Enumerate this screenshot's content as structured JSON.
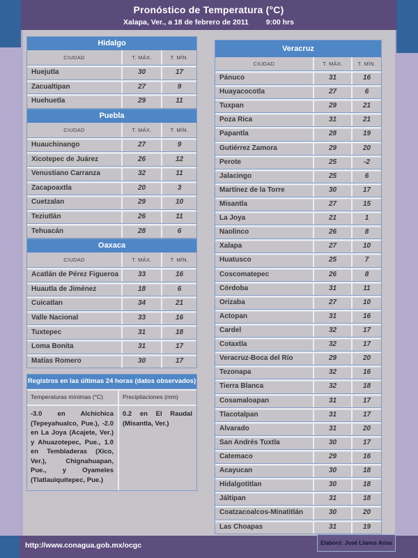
{
  "header": {
    "title": "Pronóstico de Temperatura (°C)",
    "date_line": "Xalapa, Ver., a 18  de febrero de 2011",
    "time": "9:00 hrs"
  },
  "columns": {
    "city": "CIUDAD",
    "tmax": "T. MÁX.",
    "tmin": "T. MÍN."
  },
  "left_tables": [
    {
      "name": "Hidalgo",
      "rows": [
        [
          "Huejutla",
          "30",
          "17"
        ],
        [
          "Zacualtipan",
          "27",
          "9"
        ],
        [
          "Huehuetla",
          "29",
          "11"
        ]
      ]
    },
    {
      "name": "Puebla",
      "rows": [
        [
          "Huauchinango",
          "27",
          "9"
        ],
        [
          "Xicotepec de Juárez",
          "26",
          "12"
        ],
        [
          "Venustiano Carranza",
          "32",
          "11"
        ],
        [
          "Zacapoaxtla",
          "20",
          "3"
        ],
        [
          "Cuetzalan",
          "29",
          "10"
        ],
        [
          "Teziutlán",
          "26",
          "11"
        ],
        [
          "Tehuacán",
          "28",
          "6"
        ]
      ]
    },
    {
      "name": "Oaxaca",
      "rows": [
        [
          "Acatlán de Pérez Figueroa",
          "33",
          "16"
        ],
        [
          "Huautla de Jiménez",
          "18",
          "6"
        ],
        [
          "Cuicatlan",
          "34",
          "21"
        ],
        [
          "Valle Nacional",
          "33",
          "16"
        ],
        [
          "Tuxtepec",
          "31",
          "18"
        ],
        [
          "Loma Bonita",
          "31",
          "17"
        ],
        [
          "Matías Romero",
          "30",
          "17"
        ]
      ]
    }
  ],
  "right_tables": [
    {
      "name": "Veracruz",
      "rows": [
        [
          "Pánuco",
          "31",
          "16"
        ],
        [
          "Huayacocotla",
          "27",
          "6"
        ],
        [
          "Tuxpan",
          "29",
          "21"
        ],
        [
          "Poza Rica",
          "31",
          "21"
        ],
        [
          "Papantla",
          "28",
          "19"
        ],
        [
          "Gutiérrez Zamora",
          "29",
          "20"
        ],
        [
          "Perote",
          "25",
          "-2"
        ],
        [
          "Jalacingo",
          "25",
          "6"
        ],
        [
          "Martínez de la Torre",
          "30",
          "17"
        ],
        [
          "Misantla",
          "27",
          "15"
        ],
        [
          "La Joya",
          "21",
          "1"
        ],
        [
          "Naolinco",
          "26",
          "8"
        ],
        [
          "Xalapa",
          "27",
          "10"
        ],
        [
          "Huatusco",
          "25",
          "7"
        ],
        [
          "Coscomatepec",
          "26",
          "8"
        ],
        [
          "Córdoba",
          "31",
          "11"
        ],
        [
          "Orizaba",
          "27",
          "10"
        ],
        [
          "Actopan",
          "31",
          "16"
        ],
        [
          "Cardel",
          "32",
          "17"
        ],
        [
          "Cotaxtla",
          "32",
          "17"
        ],
        [
          "Veracruz-Boca del Río",
          "29",
          "20"
        ],
        [
          "Tezonapa",
          "32",
          "16"
        ],
        [
          "Tierra Blanca",
          "32",
          "18"
        ],
        [
          "Cosamaloapan",
          "31",
          "17"
        ],
        [
          "Tlacotalpan",
          "31",
          "17"
        ],
        [
          "Alvarado",
          "31",
          "20"
        ],
        [
          "San Andrés Tuxtla",
          "30",
          "17"
        ],
        [
          "Catemaco",
          "29",
          "16"
        ],
        [
          "Acayucan",
          "30",
          "18"
        ],
        [
          "Hidalgotitlan",
          "30",
          "18"
        ],
        [
          "Jáltipan",
          "31",
          "18"
        ],
        [
          "Coatzacoalcos-Minatitlán",
          "30",
          "20"
        ],
        [
          "Las Choapas",
          "31",
          "19"
        ]
      ]
    }
  ],
  "registros": {
    "title": "Registros en las últimas 24 horas (datos observados)",
    "col1_header": "Temperaturas mínimas (°C)",
    "col2_header": "Precipitaciones (mm)",
    "col1_text": "-3.0 en Alchichica (Tepeyahualco, Pue.), -2.0 en La Joya (Acajete, Ver.) y Ahuazotepec, Pue., 1.0 en Tembladeras (Xico, Ver.), Chignahuapan, Pue., y Oyameles (Tlatlauiquitepec, Pue.)",
    "col2_text": "0.2 en El Raudal (Misantla, Ver.)"
  },
  "footer": {
    "url": "http://www.conagua.gob.mx/ocgc",
    "credit": "Elaboró: José Llanos Arias"
  },
  "colors": {
    "header_purple": "#5a4b7b",
    "footer_purple": "#5d4e7e",
    "corner_blue": "#33639b",
    "table_header_blue": "#4f86c6",
    "panel_gray": "#c6c3c9",
    "page_lavender": "#b2abce",
    "divider_blue": "#7f9cc5",
    "divider_white": "#eceef2"
  }
}
